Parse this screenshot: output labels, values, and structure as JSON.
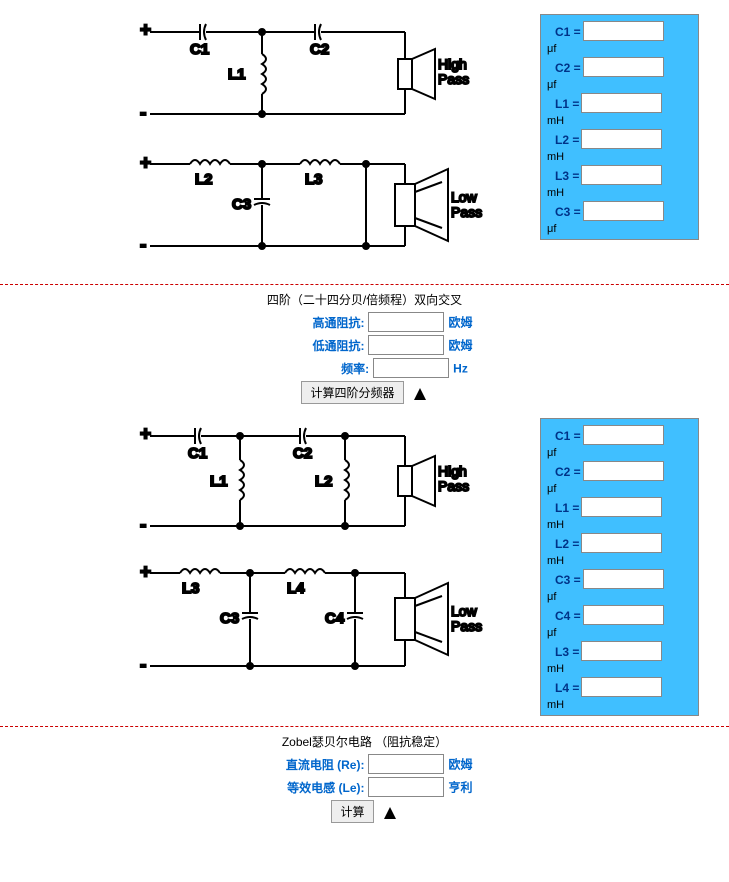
{
  "colors": {
    "panel_bg": "#40bfff",
    "label": "#003388",
    "form_label": "#0066cc",
    "divider": "#c00",
    "stroke": "#000"
  },
  "section1": {
    "diagram": {
      "high": {
        "poles": [
          "+",
          "-"
        ],
        "caps": [
          "C1",
          "C2"
        ],
        "ind": "L1",
        "speaker": "High Pass"
      },
      "low": {
        "poles": [
          "+",
          "-"
        ],
        "ind": [
          "L2",
          "L3"
        ],
        "cap": "C3",
        "speaker": "Low Pass"
      }
    },
    "results": [
      {
        "label": "C1 =",
        "unit": "μf"
      },
      {
        "label": "C2 =",
        "unit": "μf"
      },
      {
        "label": "L1 =",
        "unit": "mH"
      },
      {
        "label": "L2 =",
        "unit": "mH"
      },
      {
        "label": "L3 =",
        "unit": "mH"
      },
      {
        "label": "C3 =",
        "unit": "μf"
      }
    ]
  },
  "panel1": {
    "title": "四阶（二十四分贝/倍频程）双向交叉",
    "rows": [
      {
        "label": "高通阻抗:",
        "unit": "欧姆"
      },
      {
        "label": "低通阻抗:",
        "unit": "欧姆"
      },
      {
        "label": "频率:",
        "unit": "Hz"
      }
    ],
    "button": "计算四阶分频器"
  },
  "section2": {
    "diagram": {
      "high": {
        "poles": [
          "+",
          "-"
        ],
        "caps": [
          "C1",
          "C2"
        ],
        "ind": [
          "L1",
          "L2"
        ],
        "speaker": "High Pass"
      },
      "low": {
        "poles": [
          "+",
          "-"
        ],
        "ind": [
          "L3",
          "L4"
        ],
        "caps": [
          "C3",
          "C4"
        ],
        "speaker": "Low Pass"
      }
    },
    "results": [
      {
        "label": "C1 =",
        "unit": "μf"
      },
      {
        "label": "C2 =",
        "unit": "μf"
      },
      {
        "label": "L1 =",
        "unit": "mH"
      },
      {
        "label": "L2 =",
        "unit": "mH"
      },
      {
        "label": "C3 =",
        "unit": "μf"
      },
      {
        "label": "C4 =",
        "unit": "μf"
      },
      {
        "label": "L3 =",
        "unit": "mH"
      },
      {
        "label": "L4 =",
        "unit": "mH"
      }
    ]
  },
  "panel2": {
    "title": "Zobel瑟贝尔电路 （阻抗稳定）",
    "rows": [
      {
        "label": "直流电阻 (Re):",
        "unit": "欧姆"
      },
      {
        "label": "等效电感 (Le):",
        "unit": "亨利"
      }
    ],
    "button": "计算"
  }
}
